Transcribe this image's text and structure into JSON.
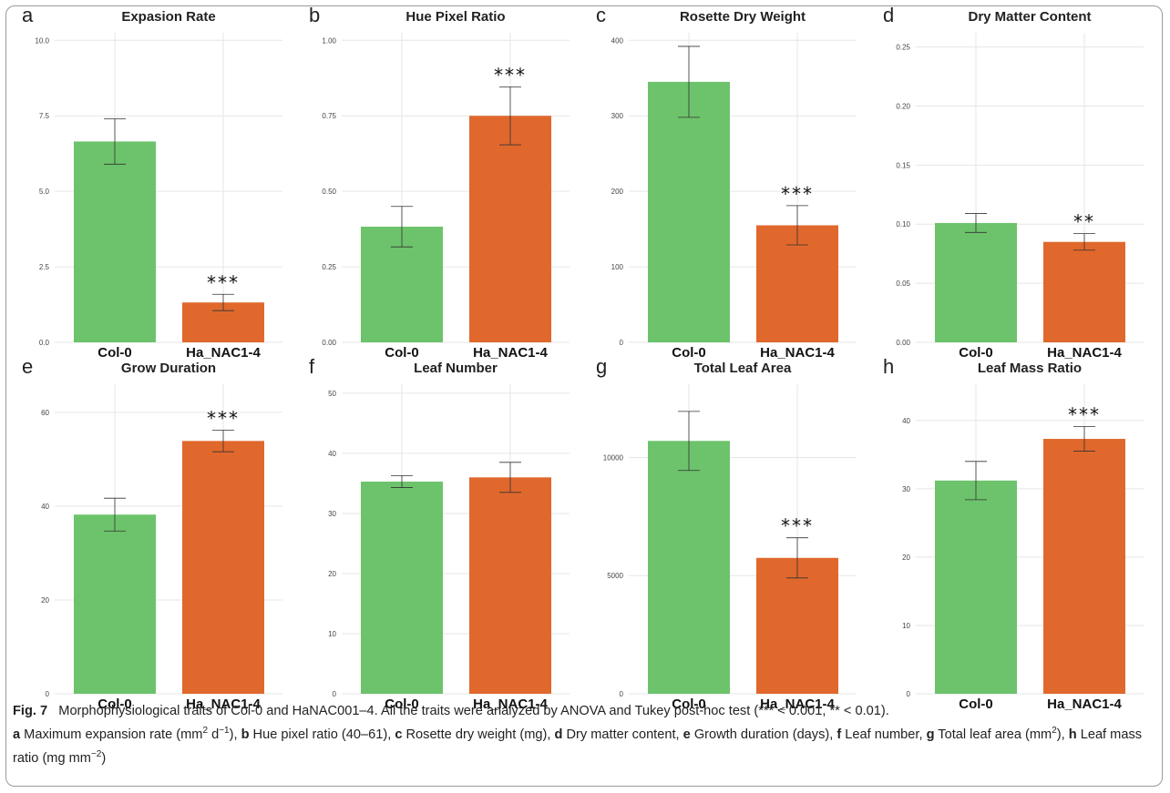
{
  "chart_data": [
    {
      "type": "bar",
      "letter": "a",
      "title": "Expasion Rate",
      "categories": [
        "Col-0",
        "Ha_NAC1-4"
      ],
      "values": [
        6.65,
        1.32
      ],
      "errors": [
        0.75,
        0.27
      ],
      "significance": [
        "",
        "***"
      ],
      "ylim": [
        0,
        10.25
      ],
      "ticks": [
        0,
        2.5,
        5,
        7.5,
        10
      ],
      "tick_labels": [
        "0.0",
        "2.5",
        "5.0",
        "7.5",
        "10.0"
      ],
      "colors": [
        "#6cc36b",
        "#e0682c"
      ],
      "grid": true
    },
    {
      "type": "bar",
      "letter": "b",
      "title": "Hue Pixel Ratio",
      "categories": [
        "Col-0",
        "Ha_NAC1-4"
      ],
      "values": [
        0.383,
        0.75
      ],
      "errors": [
        0.067,
        0.096
      ],
      "significance": [
        "",
        "***"
      ],
      "ylim": [
        0,
        1.025
      ],
      "ticks": [
        0,
        0.25,
        0.5,
        0.75,
        1.0
      ],
      "tick_labels": [
        "0.00",
        "0.25",
        "0.50",
        "0.75",
        "1.00"
      ],
      "colors": [
        "#6cc36b",
        "#e0682c"
      ],
      "grid": true
    },
    {
      "type": "bar",
      "letter": "c",
      "title": "Rosette Dry Weight",
      "categories": [
        "Col-0",
        "Ha_NAC1-4"
      ],
      "values": [
        345,
        155
      ],
      "errors": [
        47,
        26
      ],
      "significance": [
        "",
        "***"
      ],
      "ylim": [
        0,
        410
      ],
      "ticks": [
        0,
        100,
        200,
        300,
        400
      ],
      "tick_labels": [
        "0",
        "100",
        "200",
        "300",
        "400"
      ],
      "colors": [
        "#6cc36b",
        "#e0682c"
      ],
      "grid": true
    },
    {
      "type": "bar",
      "letter": "d",
      "title": "Dry Matter Content",
      "categories": [
        "Col-0",
        "Ha_NAC1-4"
      ],
      "values": [
        0.101,
        0.085
      ],
      "errors": [
        0.008,
        0.007
      ],
      "significance": [
        "",
        "**"
      ],
      "ylim": [
        0,
        0.262
      ],
      "ticks": [
        0,
        0.05,
        0.1,
        0.15,
        0.2,
        0.25
      ],
      "tick_labels": [
        "0.00",
        "0.05",
        "0.10",
        "0.15",
        "0.20",
        "0.25"
      ],
      "colors": [
        "#6cc36b",
        "#e0682c"
      ],
      "grid": true
    },
    {
      "type": "bar",
      "letter": "e",
      "title": "Grow Duration",
      "categories": [
        "Col-0",
        "Ha_NAC1-4"
      ],
      "values": [
        38.2,
        53.9
      ],
      "errors": [
        3.5,
        2.3
      ],
      "significance": [
        "",
        "***"
      ],
      "ylim": [
        0,
        66
      ],
      "ticks": [
        0,
        20,
        40,
        60
      ],
      "tick_labels": [
        "0",
        "20",
        "40",
        "60"
      ],
      "colors": [
        "#6cc36b",
        "#e0682c"
      ],
      "grid": true
    },
    {
      "type": "bar",
      "letter": "f",
      "title": "Leaf Number",
      "categories": [
        "Col-0",
        "Ha_NAC1-4"
      ],
      "values": [
        35.3,
        36.0
      ],
      "errors": [
        1.0,
        2.5
      ],
      "significance": [
        "",
        ""
      ],
      "ylim": [
        0,
        51.5
      ],
      "ticks": [
        0,
        10,
        20,
        30,
        40,
        50
      ],
      "tick_labels": [
        "0",
        "10",
        "20",
        "30",
        "40",
        "50"
      ],
      "colors": [
        "#6cc36b",
        "#e0682c"
      ],
      "grid": true
    },
    {
      "type": "bar",
      "letter": "g",
      "title": "Total Leaf Area",
      "categories": [
        "Col-0",
        "Ha_NAC1-4"
      ],
      "values": [
        10700,
        5750
      ],
      "errors": [
        1250,
        850
      ],
      "significance": [
        "",
        "***"
      ],
      "ylim": [
        0,
        13100
      ],
      "ticks": [
        0,
        5000,
        10000
      ],
      "tick_labels": [
        "0",
        "5000",
        "10000"
      ],
      "colors": [
        "#6cc36b",
        "#e0682c"
      ],
      "grid": true
    },
    {
      "type": "bar",
      "letter": "h",
      "title": "Leaf Mass Ratio",
      "categories": [
        "Col-0",
        "Ha_NAC1-4"
      ],
      "values": [
        31.2,
        37.3
      ],
      "errors": [
        2.8,
        1.8
      ],
      "significance": [
        "",
        "***"
      ],
      "ylim": [
        0,
        45.3
      ],
      "ticks": [
        0,
        10,
        20,
        30,
        40
      ],
      "tick_labels": [
        "0",
        "10",
        "20",
        "30",
        "40"
      ],
      "colors": [
        "#6cc36b",
        "#e0682c"
      ],
      "grid": true
    }
  ],
  "caption": {
    "label": "Fig. 7",
    "line1": "Morphophysiological traits of Col-0 and HaNAC001–4. All the traits were analyzed by ANOVA and Tukey post-hoc test (*** < 0.001, ** < 0.01).",
    "parts": [
      {
        "bold": "a",
        "text": " Maximum expansion rate (mm"
      },
      {
        "sup": "2"
      },
      {
        "text": " d"
      },
      {
        "sup": "−1"
      },
      {
        "text": "), "
      },
      {
        "bold": "b",
        "text": " Hue pixel ratio (40–61), "
      },
      {
        "bold": "c",
        "text": " Rosette dry weight (mg), "
      },
      {
        "bold": "d",
        "text": " Dry matter content, "
      },
      {
        "bold": "e",
        "text": " Growth duration (days), "
      },
      {
        "bold": "f",
        "text": " Leaf number, "
      },
      {
        "bold": "g",
        "text": " Total leaf area (mm"
      },
      {
        "sup": "2"
      },
      {
        "text": "), "
      },
      {
        "bold": "h",
        "text": " Leaf mass ratio (mg mm"
      },
      {
        "sup": "−2"
      },
      {
        "text": ")"
      }
    ]
  }
}
